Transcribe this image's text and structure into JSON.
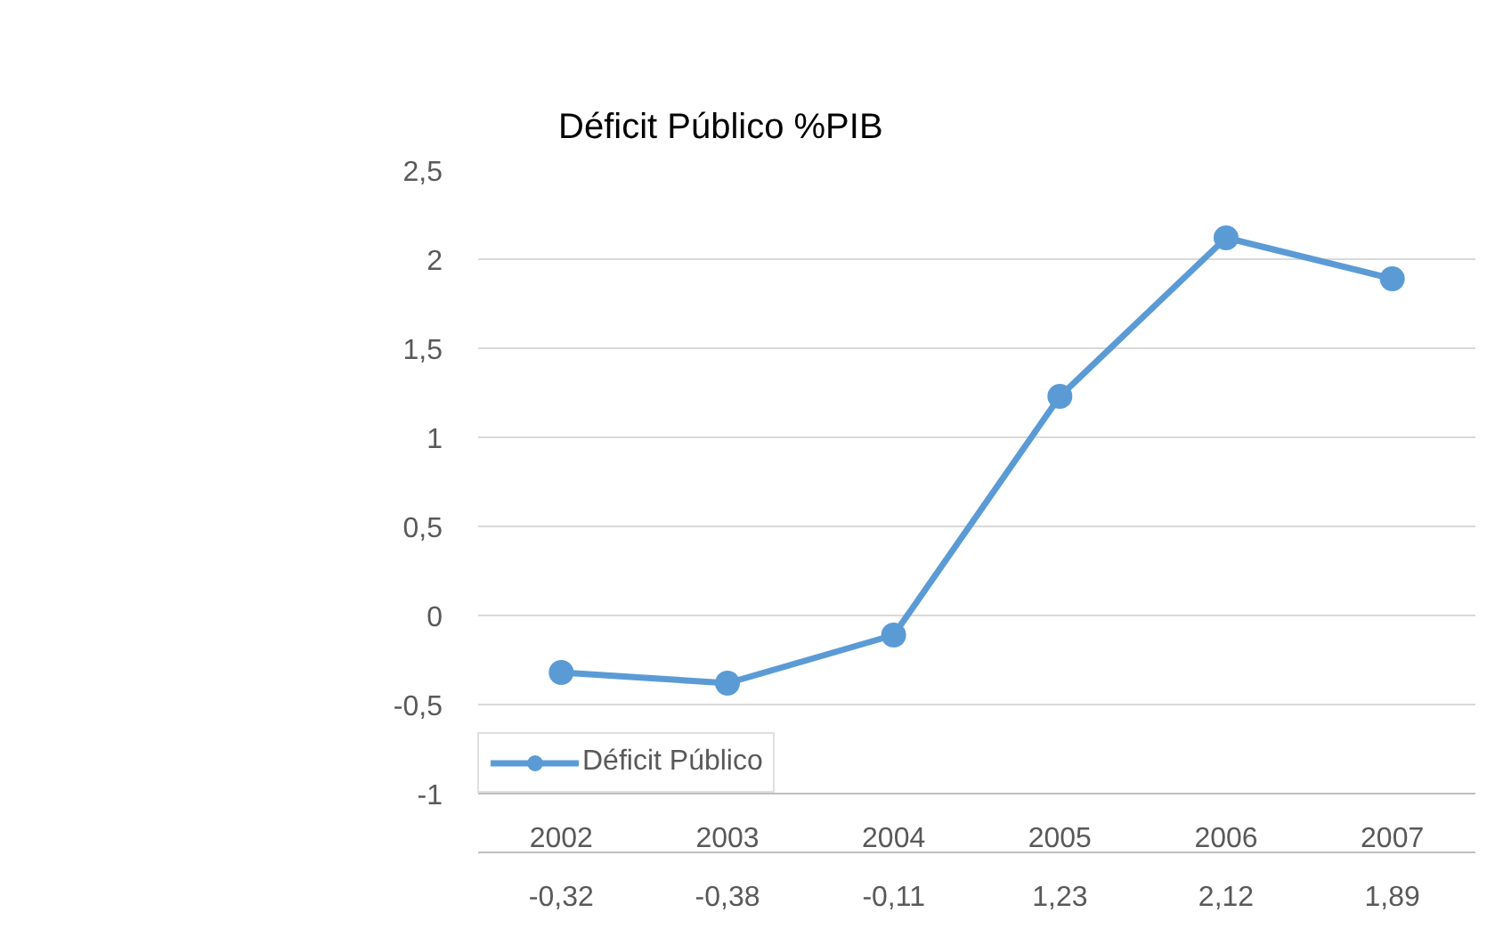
{
  "chart_data": {
    "type": "line",
    "title": "Déficit Público %PIB",
    "categories": [
      "2002",
      "2003",
      "2004",
      "2005",
      "2006",
      "2007"
    ],
    "series": [
      {
        "name": "Déficit Público",
        "color": "#5b9bd5",
        "values": [
          -0.32,
          -0.38,
          -0.11,
          1.23,
          2.12,
          1.89
        ],
        "value_labels": [
          "-0,32",
          "-0,38",
          "-0,11",
          "1,23",
          "2,12",
          "1,89"
        ]
      }
    ],
    "ylim": [
      -1,
      2.5
    ],
    "yticks": [
      -1,
      {
        "value": -0.5,
        "label": "-0,5"
      },
      0,
      {
        "value": 0.5,
        "label": "0,5"
      },
      1,
      {
        "value": 1.5,
        "label": "1,5"
      },
      2,
      {
        "value": 2.5,
        "label": "2,5"
      }
    ],
    "grid": "y",
    "marker": "circle",
    "line_style": "solid"
  }
}
